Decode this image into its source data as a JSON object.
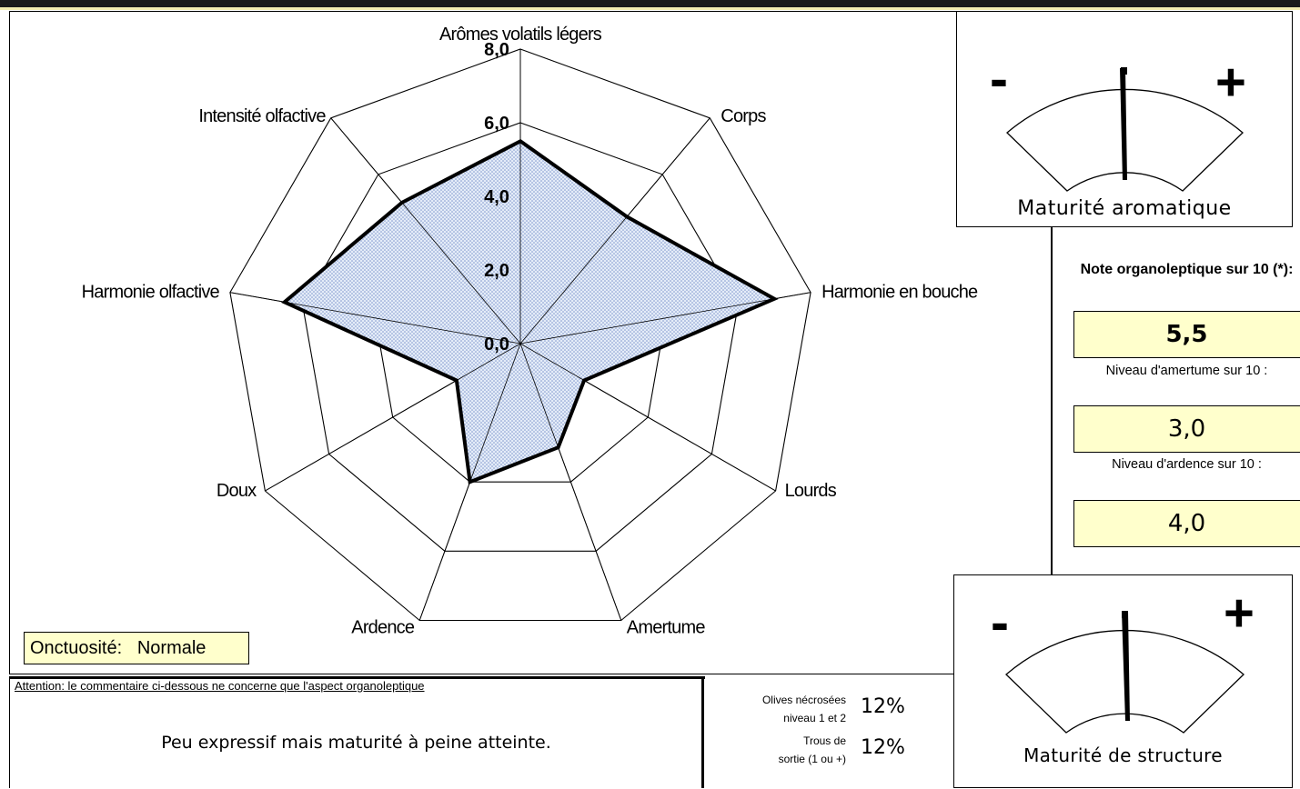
{
  "chart_data": {
    "type": "radar",
    "axes": [
      "Arômes volatils légers",
      "Corps",
      "Harmonie en bouche",
      "Lourds",
      "Amertume",
      "Ardence",
      "Doux",
      "Harmonie olfactive",
      "Intensité olfactive"
    ],
    "values": [
      5.5,
      4.5,
      7.0,
      2.0,
      3.0,
      4.0,
      2.0,
      6.5,
      5.0
    ],
    "rmin": 0,
    "rmax": 8,
    "tick_labels": [
      "0,0",
      "2,0",
      "4,0",
      "6,0",
      "8,0"
    ],
    "fill_color": "#d8e3f3",
    "dot_color": "#6b86c2",
    "line_color": "#000000"
  },
  "gauges": {
    "aromatic": {
      "title": "Maturité aromatique",
      "minus": "-",
      "plus": "+",
      "level": 0.5
    },
    "structure": {
      "title": "Maturité de structure",
      "minus": "-",
      "plus": "+",
      "level": 0.5
    }
  },
  "scores": {
    "note_title": "Note organoleptique sur 10 (*):",
    "note_value": "5,5",
    "amertume_title": "Niveau d'amertume sur 10 :",
    "amertume_value": "3,0",
    "ardence_title": "Niveau d'ardence sur 10 :",
    "ardence_value": "4,0"
  },
  "onctuosite": {
    "label": "Onctuosité:",
    "value": "Normale"
  },
  "comment": {
    "header": "Attention: le commentaire ci-dessous ne concerne que l'aspect organoleptique",
    "text": "Peu expressif mais maturité à peine atteinte."
  },
  "defects": {
    "olives_label_1": "Olives nécrosées",
    "olives_label_2": "niveau 1 et 2",
    "olives_value": "12%",
    "trous_label_1": "Trous de",
    "trous_label_2": "sortie (1 ou +)",
    "trous_value": "12%"
  }
}
